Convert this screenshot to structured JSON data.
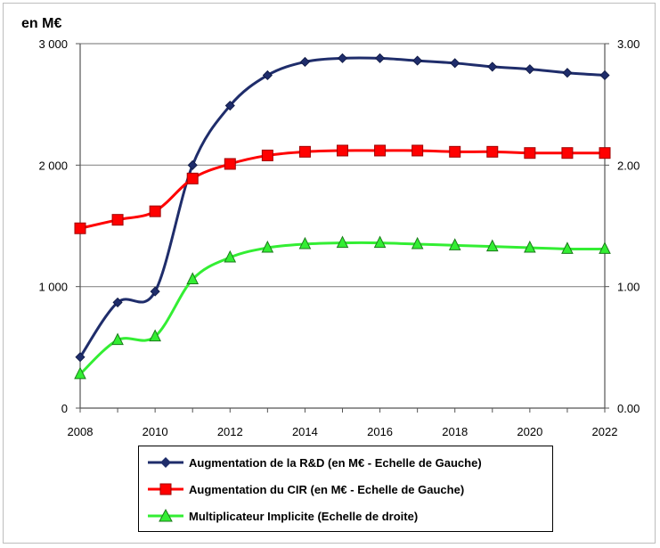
{
  "chart_data": {
    "type": "line",
    "title": "",
    "unit_label": "en M€",
    "xlabel": "",
    "ylabel_left": "en M€",
    "ylabel_right": "",
    "x": [
      2008,
      2009,
      2010,
      2011,
      2012,
      2013,
      2014,
      2015,
      2016,
      2017,
      2018,
      2019,
      2020,
      2021,
      2022
    ],
    "x_tick_labels": [
      "2008",
      "2010",
      "2012",
      "2014",
      "2016",
      "2018",
      "2020",
      "2022"
    ],
    "x_tick_values": [
      2008,
      2010,
      2012,
      2014,
      2016,
      2018,
      2020,
      2022
    ],
    "ylim_left": [
      0,
      3000
    ],
    "ylim_right": [
      0,
      3
    ],
    "y_left_ticks": [
      0,
      1000,
      2000,
      3000
    ],
    "y_left_tick_labels": [
      "0",
      "1 000",
      "2 000",
      "3 000"
    ],
    "y_right_ticks": [
      0,
      1,
      2,
      3
    ],
    "y_right_tick_labels": [
      "0.00",
      "1.00",
      "2.00",
      "3.00"
    ],
    "grid": true,
    "legend_position": "bottom",
    "series": [
      {
        "name": "Augmentation de la R&D (en M€ - Echelle de Gauche)",
        "axis": "left",
        "color": "#1f2d6b",
        "marker": "diamond",
        "values": [
          420,
          870,
          960,
          2000,
          2490,
          2740,
          2850,
          2880,
          2880,
          2860,
          2840,
          2810,
          2790,
          2760,
          2740
        ]
      },
      {
        "name": "Augmentation du CIR (en M€ - Echelle de Gauche)",
        "axis": "left",
        "color": "#ff0000",
        "marker": "square",
        "values": [
          1480,
          1550,
          1620,
          1890,
          2010,
          2080,
          2110,
          2120,
          2120,
          2120,
          2110,
          2110,
          2100,
          2100,
          2100
        ]
      },
      {
        "name": "Multiplicateur Implicite (Echelle de droite)",
        "axis": "right",
        "color": "#33ee33",
        "marker": "triangle",
        "values": [
          0.28,
          0.56,
          0.59,
          1.06,
          1.24,
          1.32,
          1.35,
          1.36,
          1.36,
          1.35,
          1.34,
          1.33,
          1.32,
          1.31,
          1.31
        ]
      }
    ]
  }
}
